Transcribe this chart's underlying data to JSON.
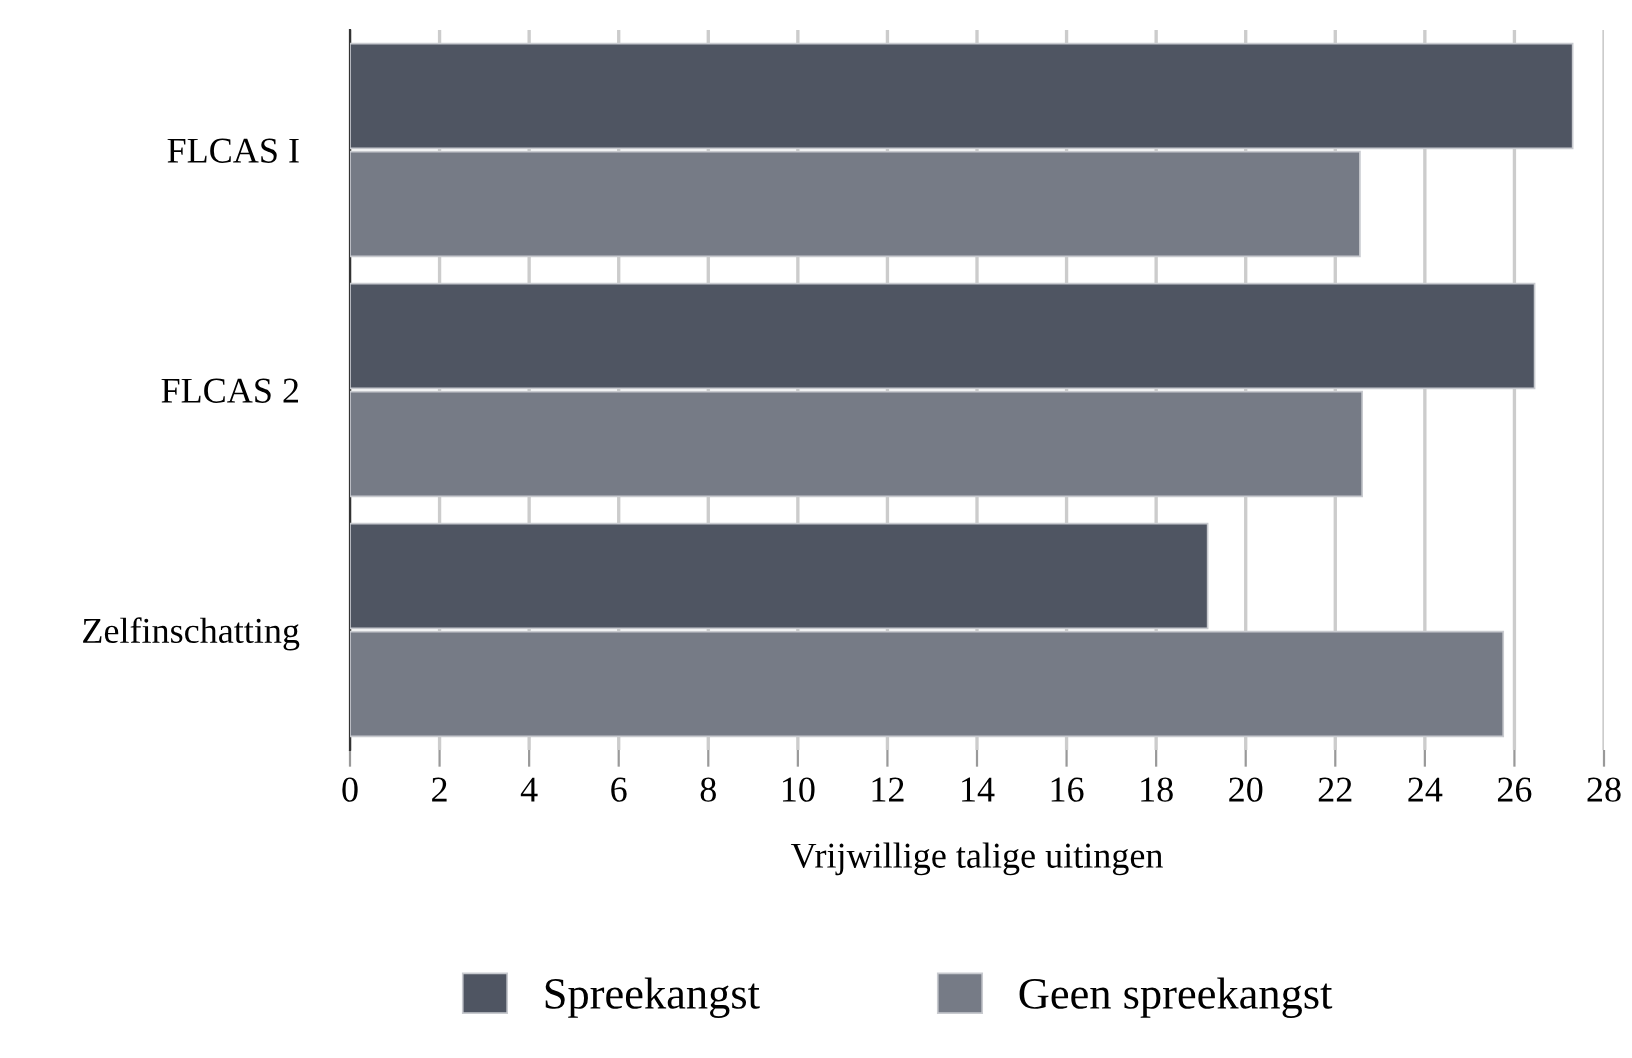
{
  "chart_data": {
    "type": "bar",
    "orientation": "horizontal",
    "xlabel": "Vrijwillige talige uitingen",
    "categories": [
      "FLCAS I",
      "FLCAS 2",
      "Zelfinschatting"
    ],
    "series": [
      {
        "name": "Spreekangst",
        "color": "#4f5562",
        "values": [
          27.3,
          26.45,
          19.15
        ]
      },
      {
        "name": "Geen spreekangst",
        "color": "#767b86",
        "values": [
          22.55,
          22.6,
          25.75
        ]
      }
    ],
    "xlim": [
      0,
      28
    ],
    "xticks": [
      0,
      2,
      4,
      6,
      8,
      10,
      12,
      14,
      16,
      18,
      20,
      22,
      24,
      26,
      28
    ],
    "grid": "x",
    "legend": "bottom"
  }
}
